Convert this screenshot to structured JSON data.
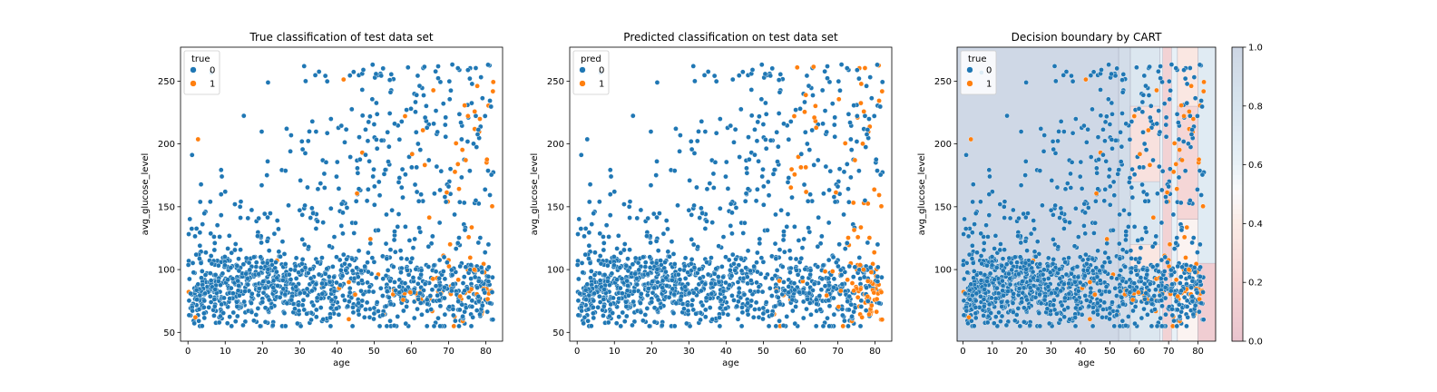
{
  "colors": {
    "class0": "#1f77b4",
    "class1": "#ff7f0e",
    "region0": "#8fa3c0",
    "region_mid_light": "#c9dce9",
    "region_mid": "#dfeaf2",
    "region1": "#e79aa7",
    "region1_light": "#f5cfcf"
  },
  "chart_data": [
    {
      "type": "scatter",
      "title": "True classification of test data set",
      "xlabel": "age",
      "ylabel": "avg_glucose_level",
      "xlim": [
        -2,
        84.5
      ],
      "ylim": [
        43,
        277
      ],
      "xticks": [
        "0",
        "10",
        "20",
        "30",
        "40",
        "50",
        "60",
        "70",
        "80"
      ],
      "yticks": [
        "50",
        "100",
        "150",
        "200",
        "250"
      ],
      "legend": {
        "title": "true",
        "position": "top-left",
        "entries": [
          "0",
          "1"
        ]
      },
      "series": [
        {
          "name": "0",
          "label_source": "legend",
          "generated": "dense cloud, approx. 1400 points across ages 0-82, glucose 55-270"
        },
        {
          "name": "1",
          "label_source": "legend"
        }
      ]
    },
    {
      "type": "scatter",
      "title": "Predicted classification on test data set",
      "xlabel": "age",
      "ylabel": "avg_glucose_level",
      "xlim": [
        -2,
        84.5
      ],
      "ylim": [
        43,
        277
      ],
      "xticks": [
        "0",
        "10",
        "20",
        "30",
        "40",
        "50",
        "60",
        "70",
        "80"
      ],
      "yticks": [
        "50",
        "100",
        "150",
        "200",
        "250"
      ],
      "legend": {
        "title": "pred",
        "position": "top-left",
        "entries": [
          "0",
          "1"
        ]
      }
    },
    {
      "type": "scatter",
      "title": "Decision boundary by CART",
      "xlabel": "age",
      "ylabel": "avg_glucose_level",
      "xlim": [
        -2,
        86
      ],
      "ylim": [
        43,
        277
      ],
      "xticks": [
        "0",
        "10",
        "20",
        "30",
        "40",
        "50",
        "60",
        "70",
        "80"
      ],
      "yticks": [
        "100",
        "150",
        "200",
        "250"
      ],
      "legend": {
        "title": "true",
        "position": "top-left",
        "entries": [
          "0",
          "1"
        ]
      },
      "colorbar": {
        "ticks": [
          "0.0",
          "0.2",
          "0.4",
          "0.6",
          "0.8",
          "1.0"
        ],
        "range": [
          0,
          1
        ]
      },
      "regions": [
        {
          "x": [
            -2,
            53
          ],
          "y": [
            43,
            277
          ],
          "prob": 0.97
        },
        {
          "x": [
            53,
            57
          ],
          "y": [
            43,
            277
          ],
          "prob": 0.9
        },
        {
          "x": [
            57,
            67
          ],
          "y": [
            43,
            277
          ],
          "prob": 0.75
        },
        {
          "x": [
            57,
            67
          ],
          "y": [
            170,
            230
          ],
          "prob": 0.3
        },
        {
          "x": [
            57,
            67
          ],
          "y": [
            100,
            120
          ],
          "prob": 0.35
        },
        {
          "x": [
            67,
            73
          ],
          "y": [
            43,
            277
          ],
          "prob": 0.6
        },
        {
          "x": [
            68,
            71
          ],
          "y": [
            43,
            277
          ],
          "prob": 0.15
        },
        {
          "x": [
            73,
            80
          ],
          "y": [
            43,
            277
          ],
          "prob": 0.35
        },
        {
          "x": [
            73,
            80
          ],
          "y": [
            43,
            140
          ],
          "prob": 0.45
        },
        {
          "x": [
            73,
            80
          ],
          "y": [
            140,
            230
          ],
          "prob": 0.2
        },
        {
          "x": [
            80,
            86
          ],
          "y": [
            43,
            277
          ],
          "prob": 0.7
        },
        {
          "x": [
            80,
            86
          ],
          "y": [
            43,
            105
          ],
          "prob": 0.1
        }
      ]
    }
  ]
}
